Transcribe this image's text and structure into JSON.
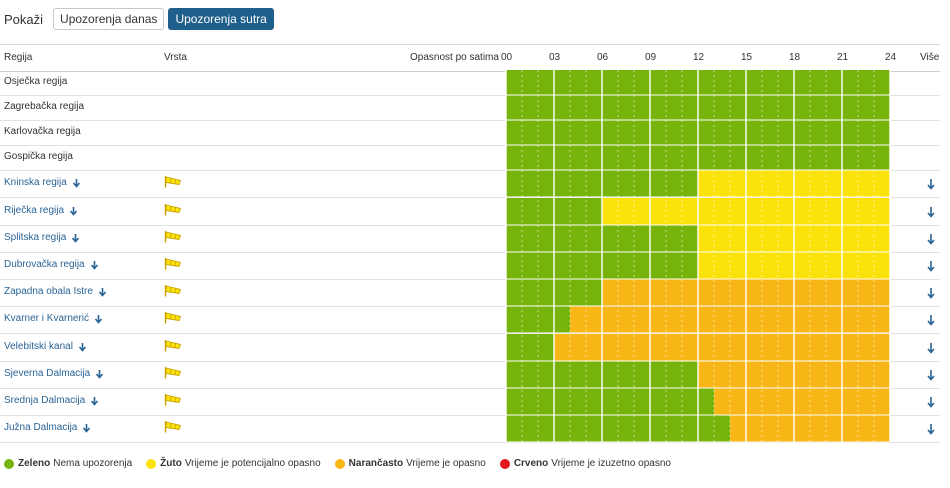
{
  "toolbar": {
    "show_label": "Pokaži",
    "tab_today": "Upozorenja danas",
    "tab_tomorrow": "Upozorenja sutra"
  },
  "header": {
    "region": "Regija",
    "type": "Vrsta",
    "hazard": "Opasnost po satima",
    "more": "Više",
    "hours": [
      "00",
      "03",
      "06",
      "09",
      "12",
      "15",
      "18",
      "21",
      "24"
    ]
  },
  "levels": {
    "green": {
      "color": "#77b40b",
      "name": "Zeleno",
      "desc": "Nema upozorenja"
    },
    "yellow": {
      "color": "#fbe20b",
      "name": "Žuto",
      "desc": "Vrijeme je potencijalno opasno"
    },
    "orange": {
      "color": "#f9b617",
      "name": "Narančasto",
      "desc": "Vrijeme je opasno"
    },
    "red": {
      "color": "#e3191c",
      "name": "Crveno",
      "desc": "Vrijeme je izuzetno opasno"
    }
  },
  "regions": [
    {
      "name": "Osječka regija",
      "warning": false,
      "segments": [
        {
          "from": 0,
          "to": 24,
          "level": "green"
        }
      ]
    },
    {
      "name": "Zagrebačka regija",
      "warning": false,
      "segments": [
        {
          "from": 0,
          "to": 24,
          "level": "green"
        }
      ]
    },
    {
      "name": "Karlovačka regija",
      "warning": false,
      "segments": [
        {
          "from": 0,
          "to": 24,
          "level": "green"
        }
      ]
    },
    {
      "name": "Gospička regija",
      "warning": false,
      "segments": [
        {
          "from": 0,
          "to": 24,
          "level": "green"
        }
      ]
    },
    {
      "name": "Kninska regija",
      "warning": true,
      "segments": [
        {
          "from": 0,
          "to": 12,
          "level": "green"
        },
        {
          "from": 12,
          "to": 24,
          "level": "yellow"
        }
      ]
    },
    {
      "name": "Riječka regija",
      "warning": true,
      "segments": [
        {
          "from": 0,
          "to": 6,
          "level": "green"
        },
        {
          "from": 6,
          "to": 24,
          "level": "yellow"
        }
      ]
    },
    {
      "name": "Splitska regija",
      "warning": true,
      "segments": [
        {
          "from": 0,
          "to": 12,
          "level": "green"
        },
        {
          "from": 12,
          "to": 24,
          "level": "yellow"
        }
      ]
    },
    {
      "name": "Dubrovačka regija",
      "warning": true,
      "segments": [
        {
          "from": 0,
          "to": 12,
          "level": "green"
        },
        {
          "from": 12,
          "to": 24,
          "level": "yellow"
        }
      ]
    },
    {
      "name": "Zapadna obala Istre",
      "warning": true,
      "segments": [
        {
          "from": 0,
          "to": 6,
          "level": "green"
        },
        {
          "from": 6,
          "to": 24,
          "level": "orange"
        }
      ]
    },
    {
      "name": "Kvarner i Kvarnerić",
      "warning": true,
      "segments": [
        {
          "from": 0,
          "to": 4,
          "level": "green"
        },
        {
          "from": 4,
          "to": 24,
          "level": "orange"
        }
      ]
    },
    {
      "name": "Velebitski kanal",
      "warning": true,
      "segments": [
        {
          "from": 0,
          "to": 3,
          "level": "green"
        },
        {
          "from": 3,
          "to": 24,
          "level": "orange"
        }
      ]
    },
    {
      "name": "Sjeverna Dalmacija",
      "warning": true,
      "segments": [
        {
          "from": 0,
          "to": 12,
          "level": "green"
        },
        {
          "from": 12,
          "to": 24,
          "level": "orange"
        }
      ]
    },
    {
      "name": "Srednja Dalmacija",
      "warning": true,
      "segments": [
        {
          "from": 0,
          "to": 13,
          "level": "green"
        },
        {
          "from": 13,
          "to": 24,
          "level": "orange"
        }
      ]
    },
    {
      "name": "Južna Dalmacija",
      "warning": true,
      "segments": [
        {
          "from": 0,
          "to": 14,
          "level": "green"
        },
        {
          "from": 14,
          "to": 24,
          "level": "orange"
        }
      ]
    }
  ]
}
